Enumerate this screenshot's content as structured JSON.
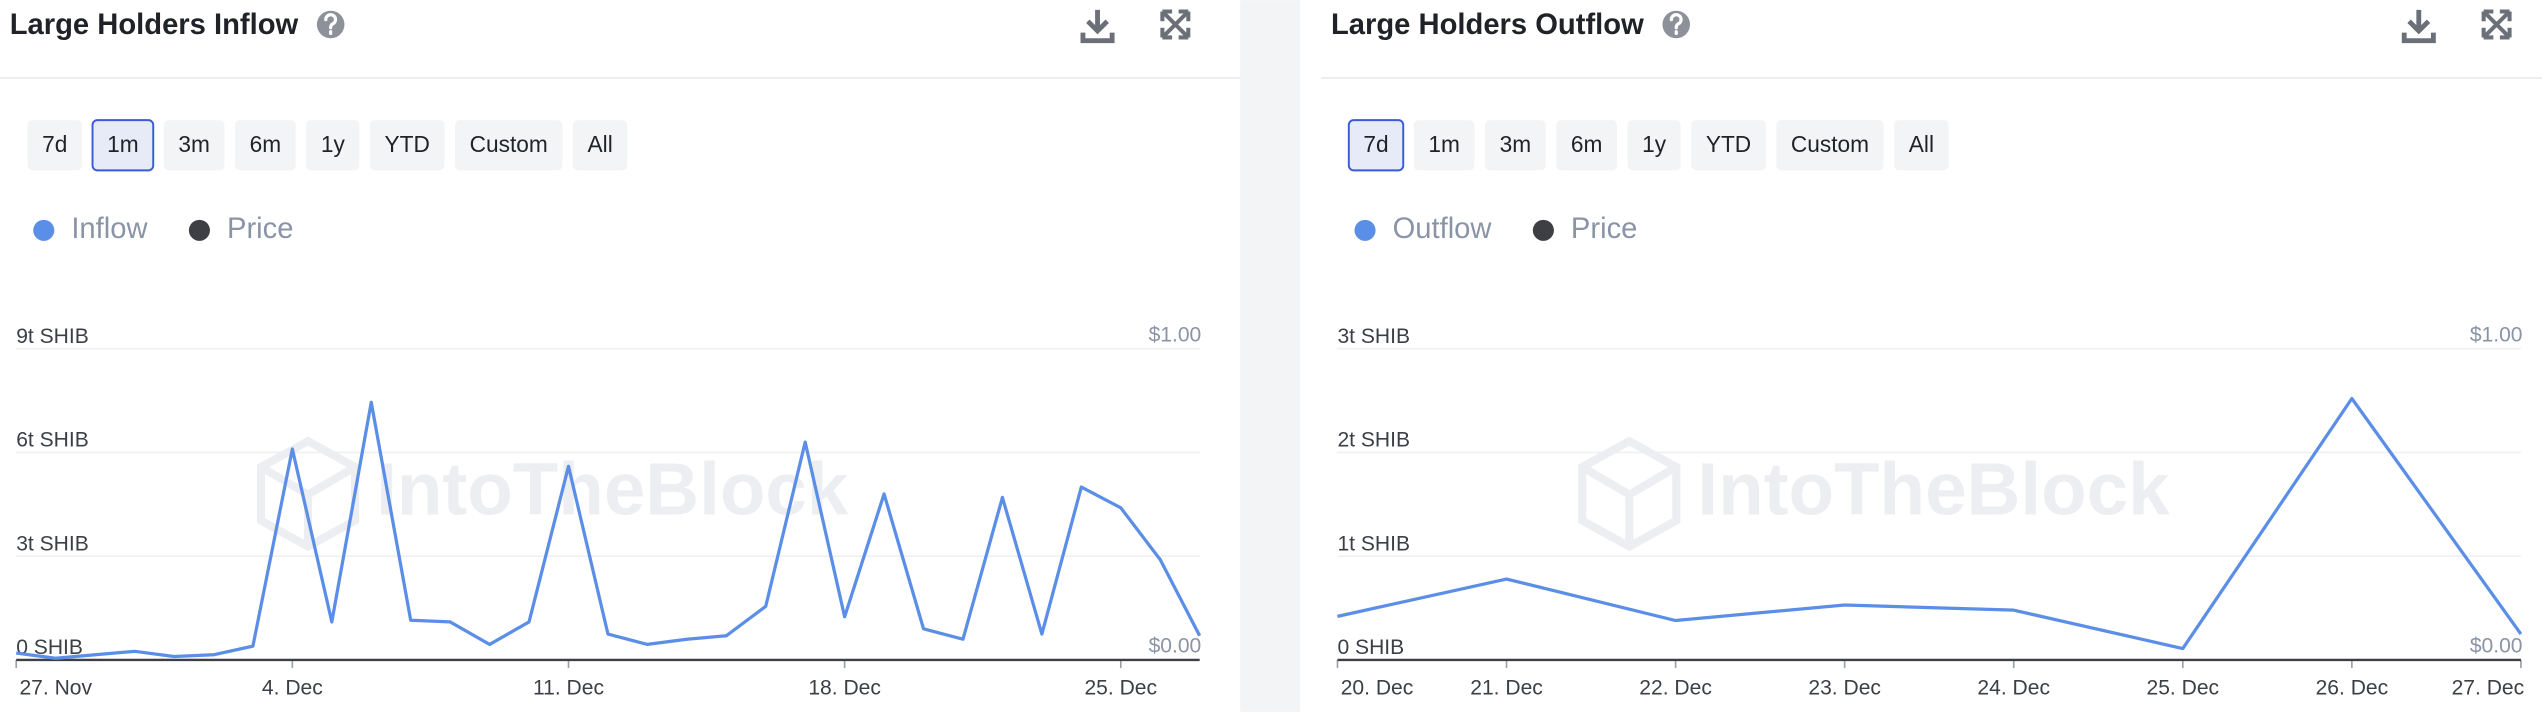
{
  "chart_data": [
    {
      "type": "line",
      "title": "Large Holders Inflow",
      "buttons": [
        "7d",
        "1m",
        "3m",
        "6m",
        "1y",
        "YTD",
        "Custom",
        "All"
      ],
      "selected_button": 1,
      "watermark": "IntoTheBlock",
      "categories": [
        "27. Nov",
        null,
        null,
        null,
        null,
        null,
        null,
        "4. Dec",
        null,
        null,
        null,
        null,
        null,
        null,
        "11. Dec",
        null,
        null,
        null,
        null,
        null,
        null,
        "18. Dec",
        null,
        null,
        null,
        null,
        null,
        null,
        "25. Dec",
        null,
        null
      ],
      "series": [
        {
          "name": "Inflow",
          "color": "#5b8ee6",
          "values": [
            200000000000,
            50000000000,
            150000000000,
            250000000000,
            100000000000,
            150000000000,
            400000000000,
            6100000000000,
            1100000000000,
            7450000000000,
            1150000000000,
            1100000000000,
            450000000000,
            1100000000000,
            5600000000000,
            750000000000,
            450000000000,
            600000000000,
            700000000000,
            1550000000000,
            6300000000000,
            1250000000000,
            4800000000000,
            900000000000,
            600000000000,
            4700000000000,
            750000000000,
            5000000000000,
            4400000000000,
            2900000000000,
            700000000000
          ]
        },
        {
          "name": "Price",
          "color": "#3d3f44",
          "axis": "y2",
          "values": [
            0,
            0,
            0,
            0,
            0,
            0,
            0,
            0,
            0,
            0,
            0,
            0,
            0,
            0,
            0,
            0,
            0,
            0,
            0,
            0,
            0,
            0,
            0,
            0,
            0,
            0,
            0,
            0,
            0,
            0,
            0
          ]
        }
      ],
      "ylim": [
        0,
        9000000000000
      ],
      "yticks": [
        {
          "value": 0,
          "label": "0 SHIB"
        },
        {
          "value": 3000000000000,
          "label": "3t SHIB"
        },
        {
          "value": 6000000000000,
          "label": "6t SHIB"
        },
        {
          "value": 9000000000000,
          "label": "9t SHIB"
        }
      ],
      "y2lim": [
        0,
        1
      ],
      "y2ticks": [
        {
          "value": 0,
          "label": "$0.00"
        },
        {
          "value": 1,
          "label": "$1.00"
        }
      ],
      "grid": true
    },
    {
      "type": "line",
      "title": "Large Holders Outflow",
      "buttons": [
        "7d",
        "1m",
        "3m",
        "6m",
        "1y",
        "YTD",
        "Custom",
        "All"
      ],
      "selected_button": 0,
      "watermark": "IntoTheBlock",
      "categories": [
        "20. Dec",
        "21. Dec",
        "22. Dec",
        "23. Dec",
        "24. Dec",
        "25. Dec",
        "26. Dec",
        "27. Dec"
      ],
      "series": [
        {
          "name": "Outflow",
          "color": "#5b8ee6",
          "values": [
            420000000000,
            780000000000,
            380000000000,
            530000000000,
            480000000000,
            110000000000,
            2520000000000,
            250000000000
          ]
        },
        {
          "name": "Price",
          "color": "#3d3f44",
          "axis": "y2",
          "values": [
            0,
            0,
            0,
            0,
            0,
            0,
            0,
            0
          ]
        }
      ],
      "ylim": [
        0,
        3000000000000
      ],
      "yticks": [
        {
          "value": 0,
          "label": "0 SHIB"
        },
        {
          "value": 1000000000000,
          "label": "1t SHIB"
        },
        {
          "value": 2000000000000,
          "label": "2t SHIB"
        },
        {
          "value": 3000000000000,
          "label": "3t SHIB"
        }
      ],
      "y2lim": [
        0,
        1
      ],
      "y2ticks": [
        {
          "value": 0,
          "label": "$0.00"
        },
        {
          "value": 1,
          "label": "$1.00"
        }
      ],
      "grid": true
    }
  ]
}
